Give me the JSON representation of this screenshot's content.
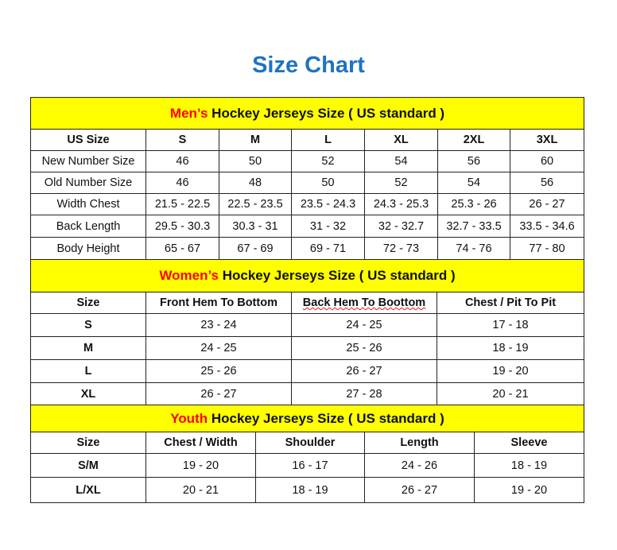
{
  "title": "Size Chart",
  "colors": {
    "title": "#1f73c0",
    "header_bg": "#ffff00",
    "highlight": "#ff0000"
  },
  "mens": {
    "highlight": "Men’s",
    "heading": " Hockey Jerseys Size ( US standard )",
    "columns": [
      "US Size",
      "S",
      "M",
      "L",
      "XL",
      "2XL",
      "3XL"
    ],
    "rows": [
      [
        "New Number Size",
        "46",
        "50",
        "52",
        "54",
        "56",
        "60"
      ],
      [
        "Old Number Size",
        "46",
        "48",
        "50",
        "52",
        "54",
        "56"
      ],
      [
        "Width Chest",
        "21.5 - 22.5",
        "22.5 - 23.5",
        "23.5 - 24.3",
        "24.3 - 25.3",
        "25.3 - 26",
        "26 - 27"
      ],
      [
        "Back Length",
        "29.5 - 30.3",
        "30.3 - 31",
        "31 - 32",
        "32 - 32.7",
        "32.7 - 33.5",
        "33.5 - 34.6"
      ],
      [
        "Body Height",
        "65 - 67",
        "67 - 69",
        "69 - 71",
        "72 - 73",
        "74 - 76",
        "77 - 80"
      ]
    ]
  },
  "womens": {
    "highlight": "Women’s",
    "heading": " Hockey Jerseys Size ( US standard )",
    "columns": [
      "Size",
      "Front Hem To Bottom",
      "Back Hem To Boottom",
      "Chest / Pit To Pit"
    ],
    "rows": [
      [
        "S",
        "23 - 24",
        "24 - 25",
        "17 - 18"
      ],
      [
        "M",
        "24 - 25",
        "25 - 26",
        "18 - 19"
      ],
      [
        "L",
        "25 - 26",
        "26 - 27",
        "19 - 20"
      ],
      [
        "XL",
        "26 - 27",
        "27 - 28",
        "20 - 21"
      ]
    ]
  },
  "youth": {
    "highlight": "Youth",
    "heading": " Hockey Jerseys Size ( US standard )",
    "columns": [
      "Size",
      "Chest / Width",
      "Shoulder",
      "Length",
      "Sleeve"
    ],
    "rows": [
      [
        "S/M",
        "19 - 20",
        "16 - 17",
        "24 - 26",
        "18 - 19"
      ],
      [
        "L/XL",
        "20 - 21",
        "18 - 19",
        "26 - 27",
        "19 - 20"
      ]
    ]
  }
}
